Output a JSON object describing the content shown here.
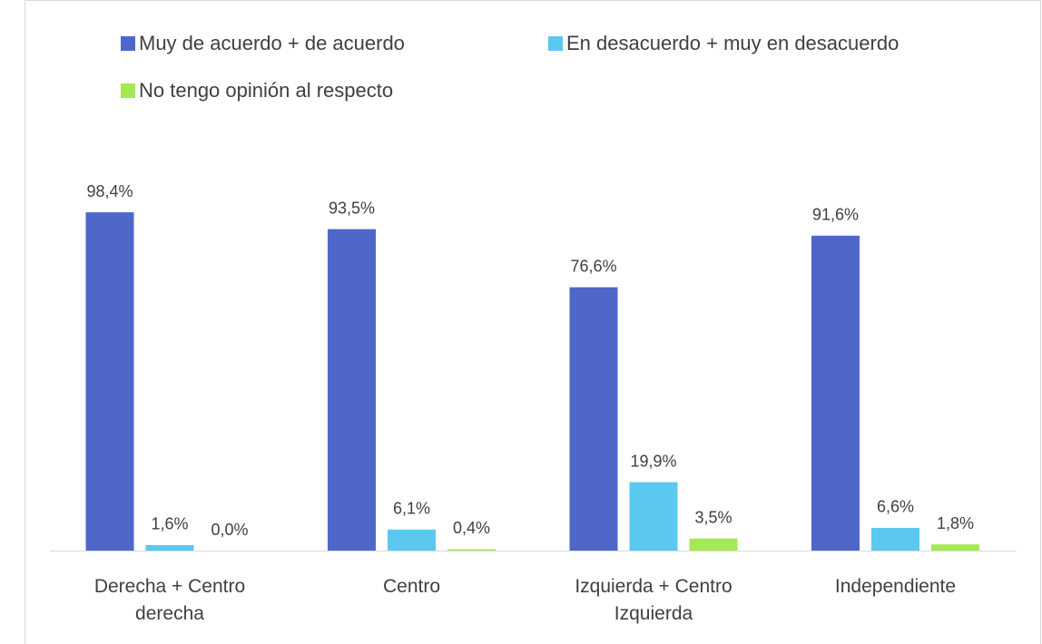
{
  "chart_data": {
    "type": "bar",
    "categories": [
      "Derecha + Centro derecha",
      "Centro",
      "Izquierda + Centro Izquierda",
      "Independiente"
    ],
    "series": [
      {
        "name": "Muy de acuerdo + de acuerdo",
        "color": "#4f67c8",
        "values": [
          98.4,
          93.5,
          76.6,
          91.6
        ],
        "value_labels": [
          "98,4%",
          "93,5%",
          "76,6%",
          "91,6%"
        ]
      },
      {
        "name": "En desacuerdo + muy en desacuerdo",
        "color": "#5bc8ef",
        "values": [
          1.6,
          6.1,
          19.9,
          6.6
        ],
        "value_labels": [
          "1,6%",
          "6,1%",
          "19,9%",
          "6,6%"
        ]
      },
      {
        "name": "No tengo opinión al respecto",
        "color": "#a4e854",
        "values": [
          0.0,
          0.4,
          3.5,
          1.8
        ],
        "value_labels": [
          "0,0%",
          "0,4%",
          "3,5%",
          "1,8%"
        ]
      }
    ],
    "legend": "top"
  }
}
